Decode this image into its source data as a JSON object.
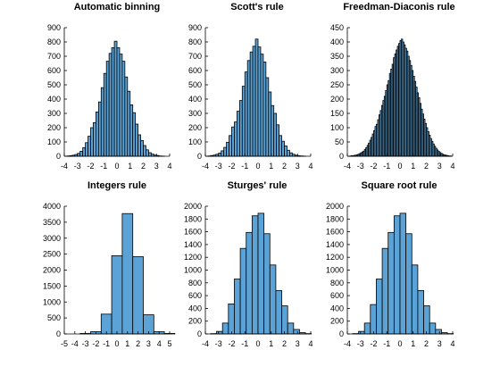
{
  "chart_data": [
    {
      "type": "bar",
      "title": "Automatic binning",
      "xlim": [
        -4,
        4
      ],
      "ylim": [
        0,
        900
      ],
      "xticks": [
        -4,
        -3,
        -2,
        -1,
        0,
        1,
        2,
        3,
        4
      ],
      "yticks": [
        0,
        100,
        200,
        300,
        400,
        500,
        600,
        700,
        800,
        900
      ],
      "bin_start": -3.8,
      "bin_width": 0.2,
      "values": [
        2,
        4,
        7,
        12,
        20,
        35,
        60,
        95,
        140,
        200,
        235,
        310,
        380,
        480,
        580,
        665,
        720,
        760,
        805,
        760,
        715,
        665,
        555,
        455,
        360,
        305,
        225,
        150,
        110,
        75,
        45,
        25,
        15,
        8,
        5,
        2,
        1
      ],
      "grid": false
    },
    {
      "type": "bar",
      "title": "Scott's rule",
      "xlim": [
        -4,
        4
      ],
      "ylim": [
        0,
        900
      ],
      "xticks": [
        -4,
        -3,
        -2,
        -1,
        0,
        1,
        2,
        3,
        4
      ],
      "yticks": [
        0,
        100,
        200,
        300,
        400,
        500,
        600,
        700,
        800,
        900
      ],
      "bin_start": -3.8,
      "bin_width": 0.2,
      "values": [
        2,
        5,
        8,
        14,
        22,
        38,
        62,
        98,
        145,
        205,
        240,
        315,
        390,
        490,
        590,
        670,
        730,
        770,
        820,
        765,
        715,
        660,
        550,
        450,
        355,
        300,
        220,
        145,
        105,
        72,
        42,
        24,
        14,
        7,
        4,
        2,
        1
      ],
      "grid": false
    },
    {
      "type": "bar",
      "title": "Freedman-Diaconis rule",
      "xlim": [
        -4,
        4
      ],
      "ylim": [
        0,
        450
      ],
      "xticks": [
        -4,
        -3,
        -2,
        -1,
        0,
        1,
        2,
        3,
        4
      ],
      "yticks": [
        0,
        50,
        100,
        150,
        200,
        250,
        300,
        350,
        400,
        450
      ],
      "bin_start": -3.8,
      "bin_width": 0.1,
      "values": [
        1,
        2,
        2,
        3,
        4,
        5,
        7,
        9,
        12,
        15,
        18,
        24,
        30,
        38,
        46,
        56,
        66,
        78,
        90,
        104,
        112,
        128,
        145,
        160,
        178,
        195,
        210,
        230,
        250,
        265,
        290,
        305,
        322,
        345,
        358,
        372,
        385,
        395,
        405,
        410,
        400,
        390,
        378,
        368,
        350,
        335,
        318,
        300,
        280,
        262,
        242,
        222,
        205,
        185,
        165,
        148,
        130,
        115,
        100,
        86,
        74,
        62,
        52,
        43,
        35,
        28,
        22,
        17,
        13,
        10,
        7,
        5,
        4,
        3,
        2,
        1,
        1
      ]
    },
    {
      "type": "bar",
      "title": "Integers rule",
      "xlim": [
        -5,
        5
      ],
      "ylim": [
        0,
        4000
      ],
      "xticks": [
        -5,
        -4,
        -3,
        -2,
        -1,
        0,
        1,
        2,
        3,
        4,
        5
      ],
      "yticks": [
        0,
        500,
        1000,
        1500,
        2000,
        2500,
        3000,
        3500,
        4000
      ],
      "bin_start": -3.5,
      "bin_width": 1,
      "values": [
        15,
        70,
        620,
        2450,
        3770,
        2420,
        600,
        70,
        15
      ]
    },
    {
      "type": "bar",
      "title": "Sturges' rule",
      "xlim": [
        -4,
        4
      ],
      "ylim": [
        0,
        2000
      ],
      "xticks": [
        -4,
        -3,
        -2,
        -1,
        0,
        1,
        2,
        3,
        4
      ],
      "yticks": [
        0,
        200,
        400,
        600,
        800,
        1000,
        1200,
        1400,
        1600,
        1800,
        2000
      ],
      "bin_start": -3.6,
      "bin_width": 0.45,
      "values": [
        5,
        40,
        170,
        470,
        860,
        1340,
        1590,
        1850,
        1890,
        1570,
        1080,
        680,
        440,
        170,
        70,
        20,
        5
      ]
    },
    {
      "type": "bar",
      "title": "Square root rule",
      "xlim": [
        -4,
        4
      ],
      "ylim": [
        0,
        2000
      ],
      "xticks": [
        -4,
        -3,
        -2,
        -1,
        0,
        1,
        2,
        3,
        4
      ],
      "yticks": [
        0,
        200,
        400,
        600,
        800,
        1000,
        1200,
        1400,
        1600,
        1800,
        2000
      ],
      "bin_start": -3.6,
      "bin_width": 0.45,
      "values": [
        5,
        40,
        170,
        460,
        860,
        1340,
        1590,
        1850,
        1890,
        1570,
        1080,
        680,
        440,
        170,
        70,
        20,
        5
      ]
    }
  ]
}
